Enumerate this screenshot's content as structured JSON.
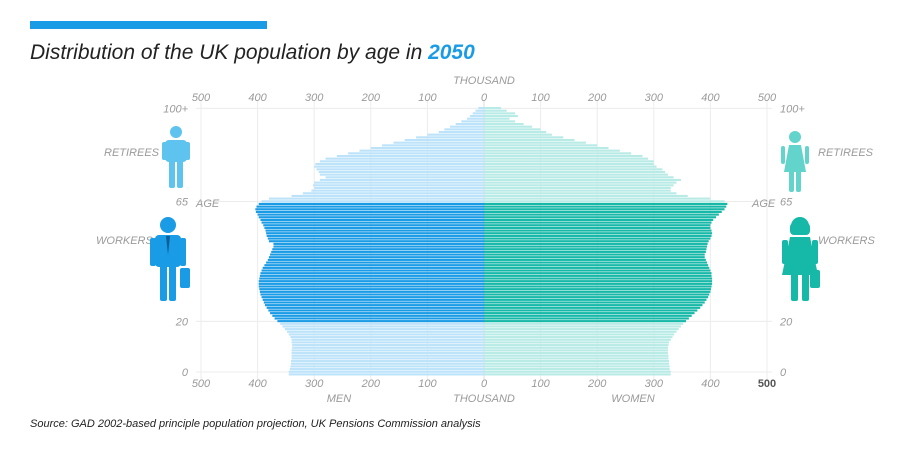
{
  "header": {
    "title_prefix": "Distribution of the UK population by age in ",
    "title_year": "2050"
  },
  "footer": {
    "source": "Source: GAD 2002-based principle population projection, UK Pensions Commission analysis"
  },
  "colors": {
    "accent": "#1a9be6",
    "men_light": "#bde3fa",
    "men_dark": "#1a9be6",
    "women_light": "#b9ebe6",
    "women_dark": "#16b8a8",
    "male_retiree": "#5ec3ee",
    "female_retiree": "#62d4cc",
    "male_worker": "#1a9be6",
    "female_worker": "#16b8a8"
  },
  "chart_data": {
    "type": "population-pyramid",
    "title": "Distribution of the UK population by age in 2050",
    "unit_label": "THOUSAND",
    "x_ticks": [
      "500",
      "400",
      "300",
      "200",
      "100",
      "0",
      "100",
      "200",
      "300",
      "400",
      "500"
    ],
    "xlim": [
      0,
      500
    ],
    "age_ticks": [
      "100+",
      "65",
      "20",
      "0"
    ],
    "age_axis_label": "AGE",
    "left_label": "MEN",
    "right_label": "WOMEN",
    "group_labels": {
      "retirees": "RETIREES",
      "workers": "WORKERS"
    },
    "worker_age_range": [
      20,
      64
    ],
    "ages": [
      0,
      1,
      2,
      3,
      4,
      5,
      6,
      7,
      8,
      9,
      10,
      11,
      12,
      13,
      14,
      15,
      16,
      17,
      18,
      19,
      20,
      21,
      22,
      23,
      24,
      25,
      26,
      27,
      28,
      29,
      30,
      31,
      32,
      33,
      34,
      35,
      36,
      37,
      38,
      39,
      40,
      41,
      42,
      43,
      44,
      45,
      46,
      47,
      48,
      49,
      50,
      51,
      52,
      53,
      54,
      55,
      56,
      57,
      58,
      59,
      60,
      61,
      62,
      63,
      64,
      65,
      66,
      67,
      68,
      69,
      70,
      71,
      72,
      73,
      74,
      75,
      76,
      77,
      78,
      79,
      80,
      81,
      82,
      83,
      84,
      85,
      86,
      87,
      88,
      89,
      90,
      91,
      92,
      93,
      94,
      95,
      96,
      97,
      98,
      99,
      100
    ],
    "series": [
      {
        "name": "MEN",
        "values": [
          345,
          345,
          343,
          342,
          341,
          341,
          340,
          340,
          340,
          340,
          339,
          339,
          340,
          340,
          342,
          345,
          348,
          352,
          356,
          360,
          365,
          370,
          374,
          378,
          381,
          384,
          387,
          389,
          391,
          393,
          395,
          396,
          397,
          398,
          398,
          398,
          397,
          396,
          395,
          393,
          391,
          388,
          385,
          382,
          380,
          378,
          376,
          374,
          372,
          372,
          380,
          382,
          384,
          385,
          386,
          388,
          390,
          393,
          395,
          398,
          400,
          403,
          404,
          402,
          398,
          393,
          380,
          340,
          320,
          305,
          300,
          302,
          300,
          290,
          280,
          290,
          292,
          296,
          300,
          298,
          290,
          280,
          260,
          240,
          220,
          200,
          180,
          160,
          140,
          120,
          100,
          80,
          70,
          60,
          50,
          40,
          30,
          25,
          20,
          15,
          10
        ]
      },
      {
        "name": "WOMEN",
        "values": [
          330,
          330,
          328,
          328,
          327,
          327,
          326,
          326,
          325,
          325,
          325,
          326,
          327,
          330,
          333,
          336,
          340,
          344,
          348,
          352,
          357,
          362,
          367,
          372,
          377,
          382,
          386,
          390,
          393,
          396,
          398,
          400,
          401,
          402,
          403,
          403,
          403,
          402,
          402,
          400,
          398,
          396,
          394,
          392,
          390,
          390,
          392,
          393,
          394,
          395,
          397,
          400,
          402,
          403,
          402,
          400,
          400,
          402,
          405,
          410,
          415,
          420,
          425,
          428,
          430,
          425,
          400,
          360,
          340,
          330,
          330,
          335,
          340,
          348,
          335,
          325,
          320,
          315,
          305,
          300,
          300,
          290,
          280,
          260,
          240,
          220,
          200,
          180,
          160,
          140,
          120,
          110,
          100,
          85,
          70,
          55,
          45,
          60,
          55,
          40,
          30
        ]
      }
    ]
  }
}
